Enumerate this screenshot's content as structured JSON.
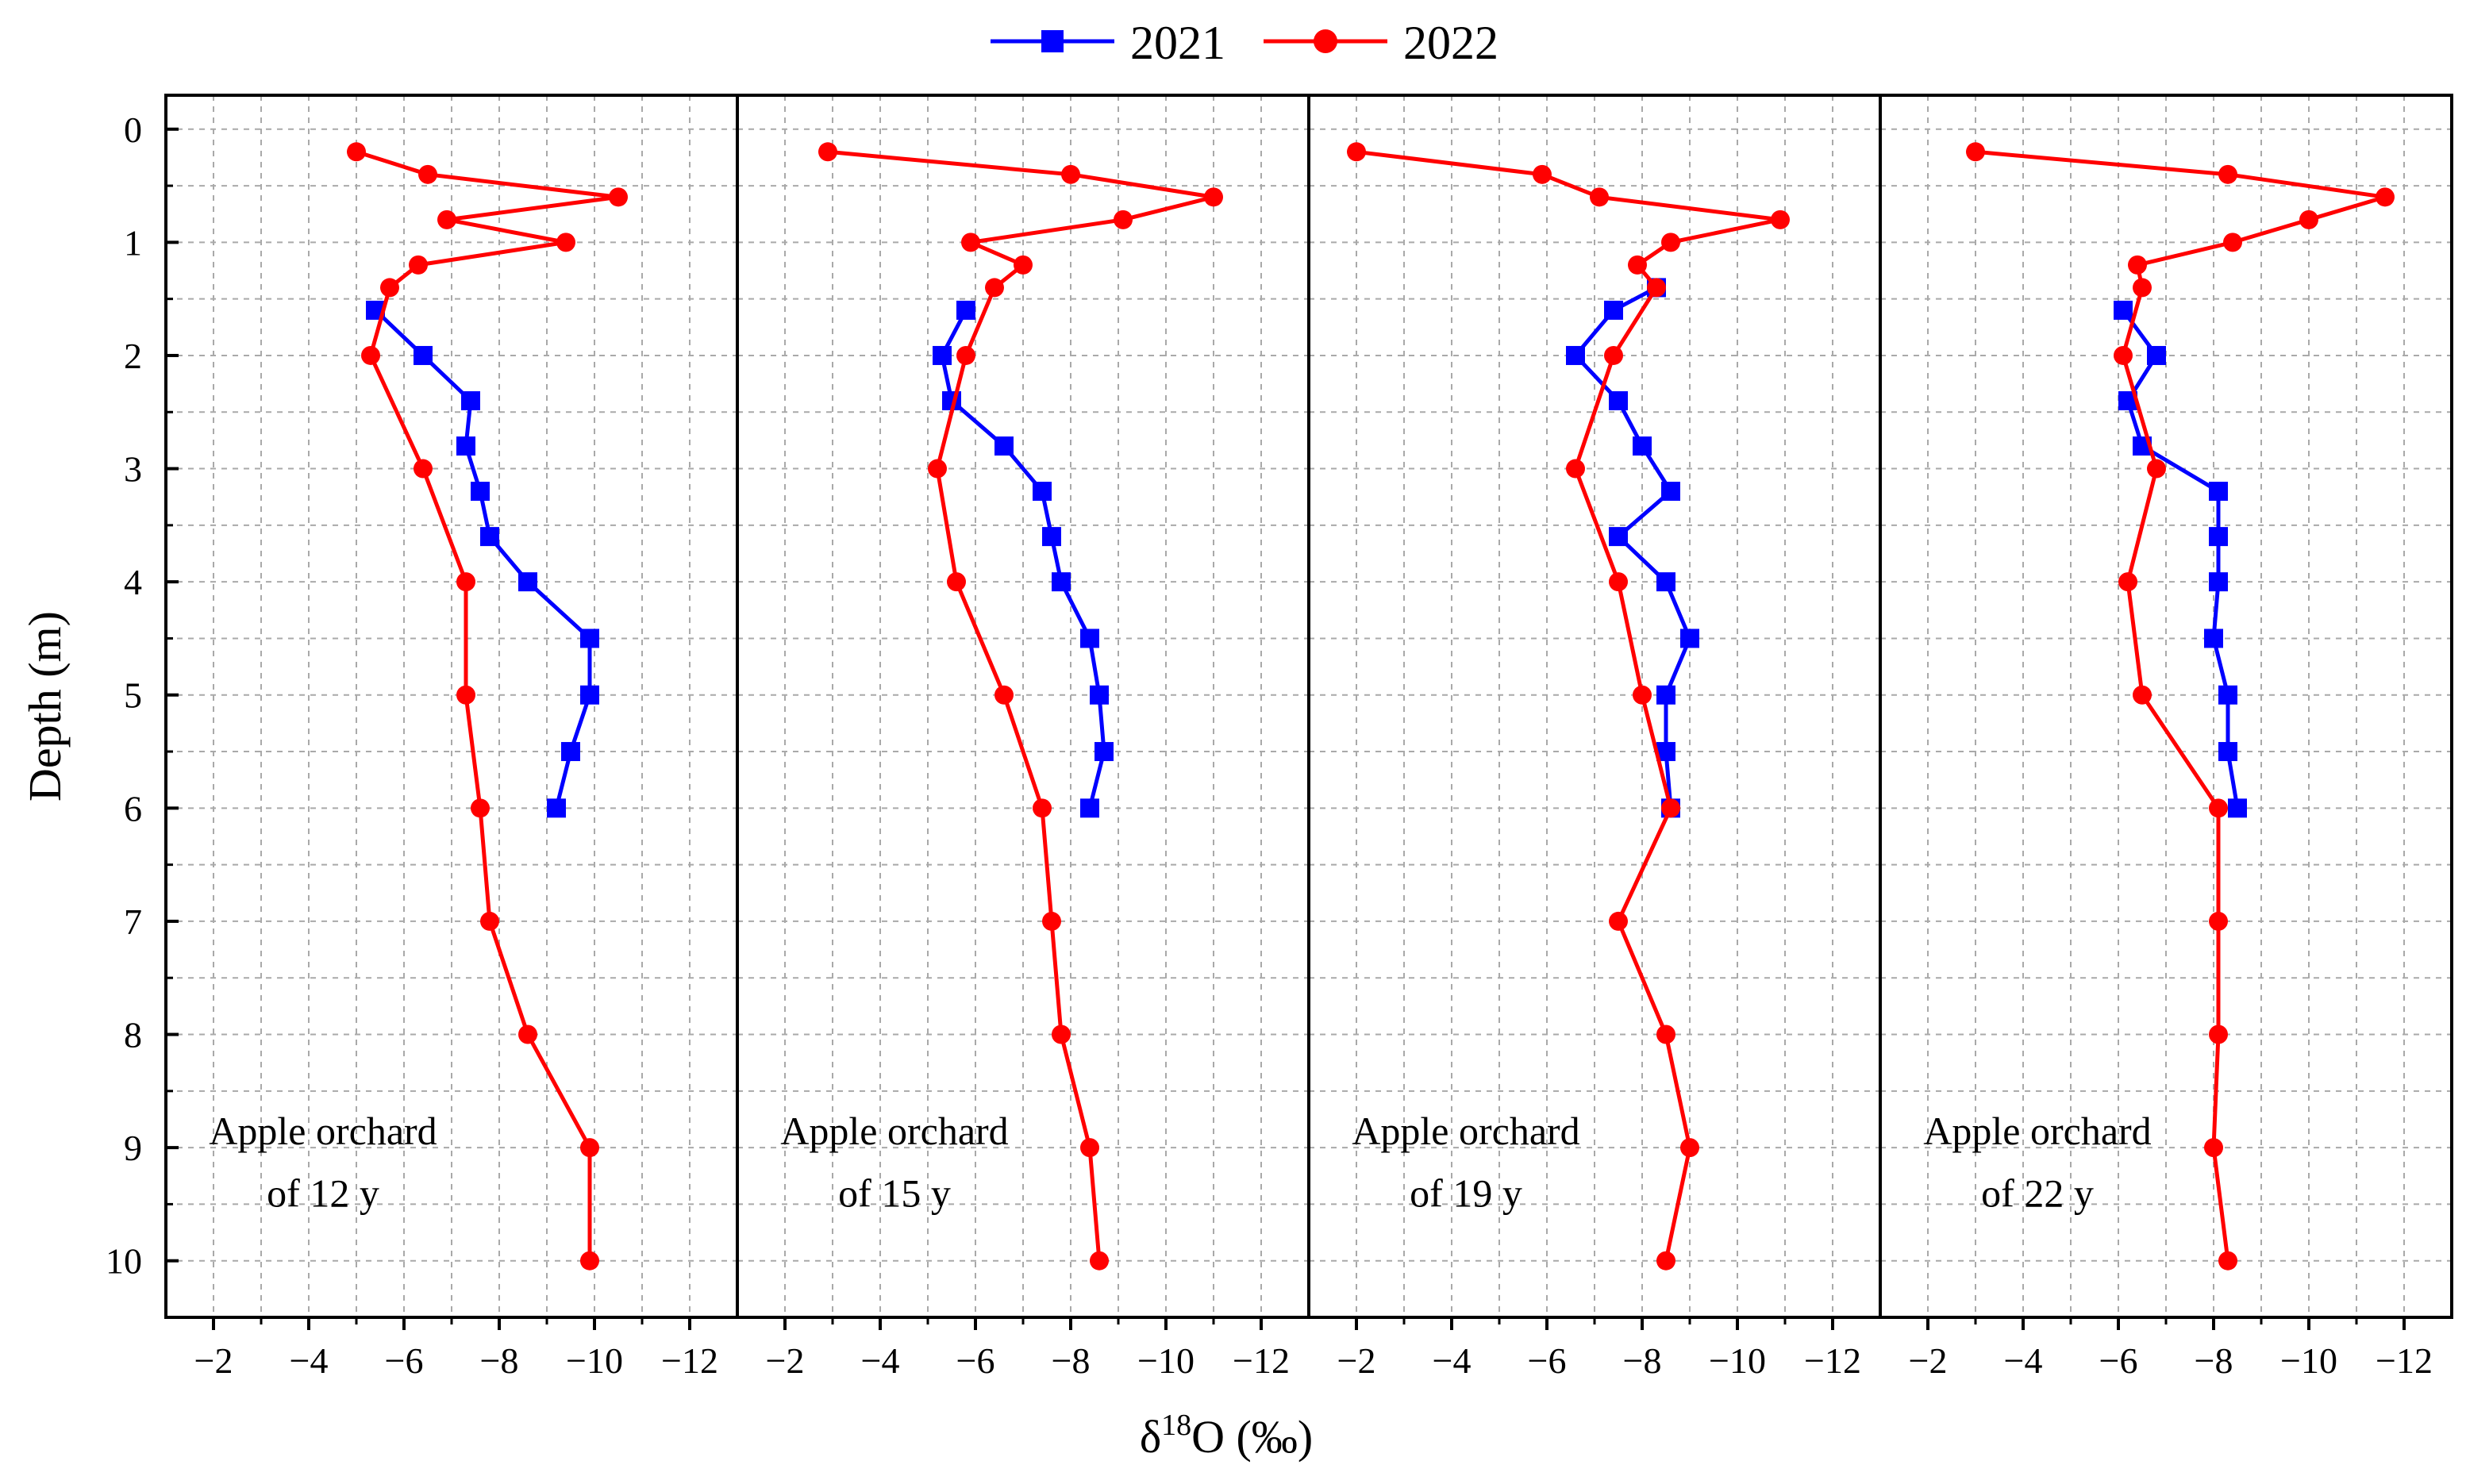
{
  "colors": {
    "series_2021": "#0000ff",
    "series_2022": "#ff0000",
    "axis": "#000000",
    "grid": "#a9a9a9"
  },
  "chart_data": {
    "type": "line",
    "orientation": "vertical-profile",
    "xlabel": "δ18O (‰)",
    "ylabel": "Depth (m)",
    "x_ticks": [
      "−2",
      "−4",
      "−6",
      "−8",
      "−10",
      "−12"
    ],
    "y_ticks": [
      "0",
      "1",
      "2",
      "3",
      "4",
      "5",
      "6",
      "7",
      "8",
      "9",
      "10"
    ],
    "xlim": [
      -1,
      -13
    ],
    "ylim": [
      -0.3,
      10.5
    ],
    "grid": true,
    "legend": [
      {
        "name": "2021",
        "marker": "square",
        "color": "#0000ff"
      },
      {
        "name": "2022",
        "marker": "circle",
        "color": "#ff0000"
      }
    ],
    "legend_position": "top-center",
    "panels": [
      {
        "annotation_line1": "Apple orchard",
        "annotation_line2": "of 12 y",
        "series": [
          {
            "name": "2021",
            "depth": [
              1.6,
              2.0,
              2.4,
              2.8,
              3.2,
              3.6,
              4.0,
              4.5,
              5.0,
              5.5,
              6.0
            ],
            "d18O": [
              -5.4,
              -6.4,
              -7.4,
              -7.3,
              -7.6,
              -7.8,
              -8.6,
              -9.9,
              -9.9,
              -9.5,
              -9.2
            ]
          },
          {
            "name": "2022",
            "depth": [
              0.2,
              0.4,
              0.6,
              0.8,
              1.0,
              1.2,
              1.4,
              2.0,
              3.0,
              4.0,
              5.0,
              6.0,
              7.0,
              8.0,
              9.0,
              10.0
            ],
            "d18O": [
              -5.0,
              -6.5,
              -10.5,
              -6.9,
              -9.4,
              -6.3,
              -5.7,
              -5.3,
              -6.4,
              -7.3,
              -7.3,
              -7.6,
              -7.8,
              -8.6,
              -9.9,
              -9.9
            ]
          }
        ]
      },
      {
        "annotation_line1": "Apple orchard",
        "annotation_line2": "of 15 y",
        "series": [
          {
            "name": "2021",
            "depth": [
              1.6,
              2.0,
              2.4,
              2.8,
              3.2,
              3.6,
              4.0,
              4.5,
              5.0,
              5.5,
              6.0
            ],
            "d18O": [
              -5.8,
              -5.3,
              -5.5,
              -6.6,
              -7.4,
              -7.6,
              -7.8,
              -8.4,
              -8.6,
              -8.7,
              -8.4
            ]
          },
          {
            "name": "2022",
            "depth": [
              0.2,
              0.4,
              0.6,
              0.8,
              1.0,
              1.2,
              1.4,
              2.0,
              3.0,
              4.0,
              5.0,
              6.0,
              7.0,
              8.0,
              9.0,
              10.0
            ],
            "d18O": [
              -2.9,
              -8.0,
              -11.0,
              -9.1,
              -5.9,
              -7.0,
              -6.4,
              -5.8,
              -5.2,
              -5.6,
              -6.6,
              -7.4,
              -7.6,
              -7.8,
              -8.4,
              -8.6
            ]
          }
        ]
      },
      {
        "annotation_line1": "Apple orchard",
        "annotation_line2": "of 19 y",
        "series": [
          {
            "name": "2021",
            "depth": [
              1.4,
              1.6,
              2.0,
              2.4,
              2.8,
              3.2,
              3.6,
              4.0,
              4.5,
              5.0,
              5.5,
              6.0
            ],
            "d18O": [
              -8.3,
              -7.4,
              -6.6,
              -7.5,
              -8.0,
              -8.6,
              -7.5,
              -8.5,
              -9.0,
              -8.5,
              -8.5,
              -8.6
            ]
          },
          {
            "name": "2022",
            "depth": [
              0.2,
              0.4,
              0.6,
              0.8,
              1.0,
              1.2,
              1.4,
              2.0,
              3.0,
              4.0,
              5.0,
              6.0,
              7.0,
              8.0,
              9.0,
              10.0
            ],
            "d18O": [
              -2.0,
              -5.9,
              -7.1,
              -10.9,
              -8.6,
              -7.9,
              -8.3,
              -7.4,
              -6.6,
              -7.5,
              -8.0,
              -8.6,
              -7.5,
              -8.5,
              -9.0,
              -8.5
            ]
          }
        ]
      },
      {
        "annotation_line1": "Apple orchard",
        "annotation_line2": "of 22 y",
        "series": [
          {
            "name": "2021",
            "depth": [
              1.6,
              2.0,
              2.4,
              2.8,
              3.2,
              3.6,
              4.0,
              4.5,
              5.0,
              5.5,
              6.0
            ],
            "d18O": [
              -6.1,
              -6.8,
              -6.2,
              -6.5,
              -8.1,
              -8.1,
              -8.1,
              -8.0,
              -8.3,
              -8.3,
              -8.5
            ]
          },
          {
            "name": "2022",
            "depth": [
              0.2,
              0.4,
              0.6,
              0.8,
              1.0,
              1.2,
              1.4,
              2.0,
              3.0,
              4.0,
              5.0,
              6.0,
              7.0,
              8.0,
              9.0,
              10.0
            ],
            "d18O": [
              -3.0,
              -8.3,
              -11.6,
              -10.0,
              -8.4,
              -6.4,
              -6.5,
              -6.1,
              -6.8,
              -6.2,
              -6.5,
              -8.1,
              -8.1,
              -8.1,
              -8.0,
              -8.3
            ]
          }
        ]
      }
    ]
  }
}
